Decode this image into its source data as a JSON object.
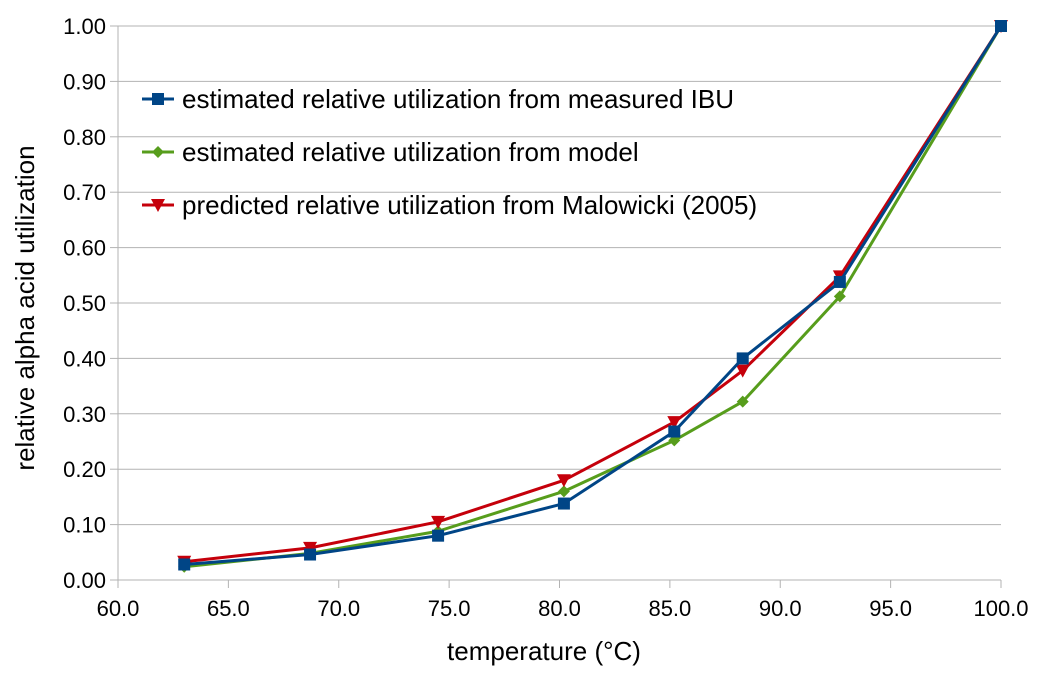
{
  "chart_data": {
    "type": "line",
    "title": "",
    "xlabel": "temperature (°C)",
    "ylabel": "relative alpha acid utilization",
    "xlim": [
      60.0,
      100.0
    ],
    "ylim": [
      0.0,
      1.0
    ],
    "x_ticks": [
      "60.0",
      "65.0",
      "70.0",
      "75.0",
      "80.0",
      "85.0",
      "90.0",
      "95.0",
      "100.0"
    ],
    "y_ticks": [
      "0.00",
      "0.10",
      "0.20",
      "0.30",
      "0.40",
      "0.50",
      "0.60",
      "0.70",
      "0.80",
      "0.90",
      "1.00"
    ],
    "grid": "horizontal",
    "legend_position": "top-left",
    "series": [
      {
        "name": "estimated relative utilization from measured IBU",
        "color": "#004586",
        "marker": "square",
        "x": [
          63.0,
          68.7,
          74.5,
          80.2,
          85.2,
          88.3,
          92.7,
          100.0
        ],
        "y": [
          0.028,
          0.046,
          0.08,
          0.138,
          0.268,
          0.4,
          0.538,
          1.0
        ]
      },
      {
        "name": "estimated relative utilization from model",
        "color": "#579D1C",
        "marker": "diamond",
        "x": [
          63.0,
          68.7,
          74.5,
          80.2,
          85.2,
          88.3,
          92.7,
          100.0
        ],
        "y": [
          0.024,
          0.048,
          0.088,
          0.16,
          0.252,
          0.322,
          0.512,
          1.0
        ]
      },
      {
        "name": "predicted relative utilization from Malowicki (2005)",
        "color": "#C5000B",
        "marker": "triangle-down",
        "x": [
          63.0,
          68.7,
          74.5,
          80.2,
          85.2,
          88.3,
          92.7,
          100.0
        ],
        "y": [
          0.033,
          0.058,
          0.105,
          0.18,
          0.285,
          0.378,
          0.548,
          1.0
        ]
      }
    ]
  }
}
